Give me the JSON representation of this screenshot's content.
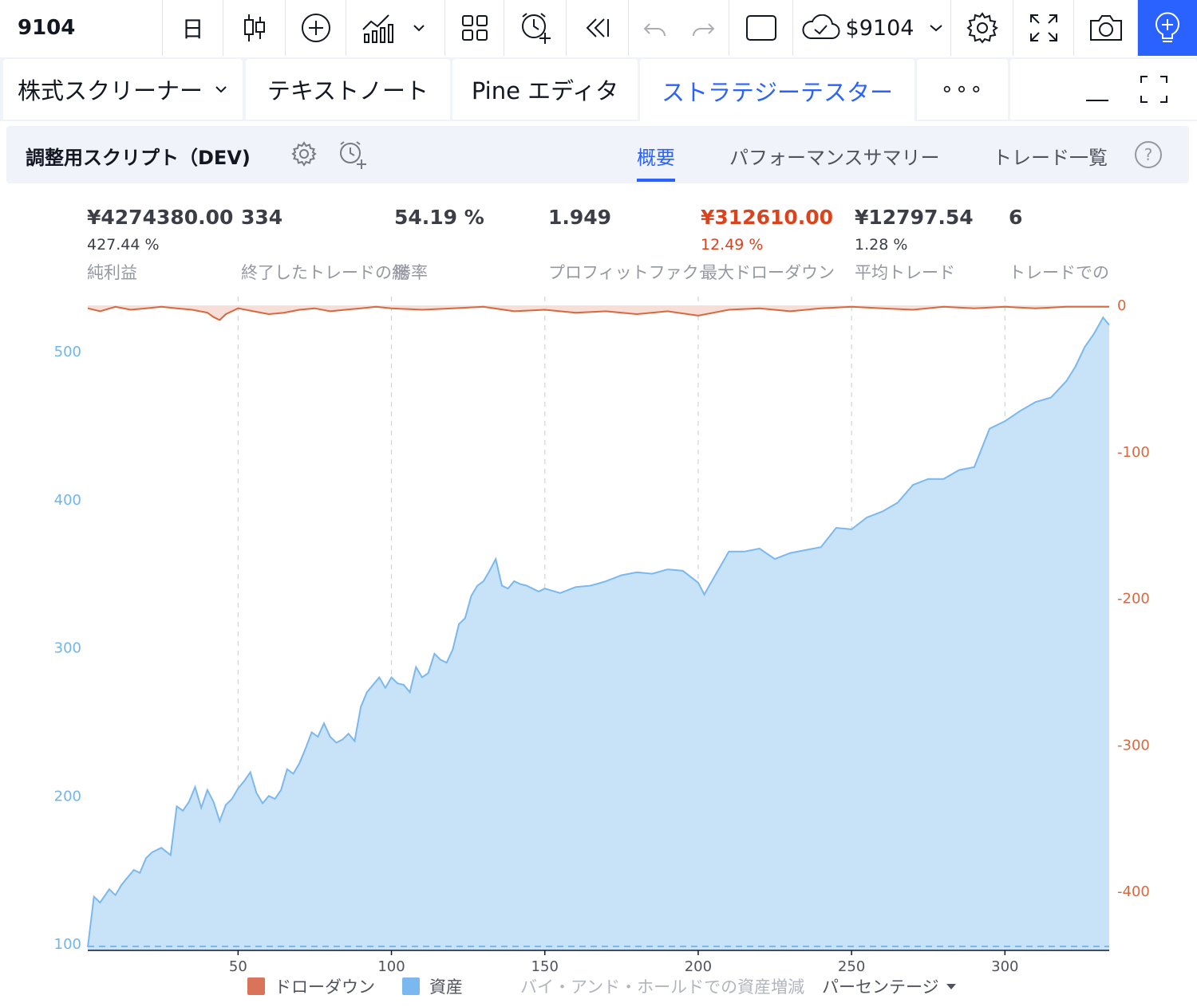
{
  "toolbar": {
    "symbol": "9104",
    "interval": "日",
    "cloud_label": "$9104",
    "icons": [
      "candles-icon",
      "add-circle-icon",
      "indicators-icon",
      "chevron-down-icon",
      "layout-icon",
      "alert-add-icon",
      "replay-icon",
      "undo-icon",
      "redo-icon",
      "square-icon",
      "cloud-check-icon",
      "gear-icon",
      "fullscreen-icon",
      "camera-icon",
      "lightbulb-icon"
    ],
    "accent": "#2962ff"
  },
  "tabs": {
    "screener": "株式スクリーナー",
    "notes": "テキストノート",
    "pine": "Pine エディタ",
    "tester": "ストラテジーテスター",
    "more": "∘∘∘",
    "minimize": "—"
  },
  "strategy": {
    "title": "調整用スクリプト（DEV)",
    "tab_overview": "概要",
    "tab_performance": "パフォーマンスサマリー",
    "tab_trades": "トレード一覧",
    "help": "?"
  },
  "metrics": [
    {
      "value": "¥4274380.00",
      "sub": "427.44 %",
      "label": "純利益",
      "negative": false
    },
    {
      "value": "334",
      "sub": "",
      "label": "終了したトレードの総数",
      "negative": false
    },
    {
      "value": "54.19 %",
      "sub": "",
      "label": "勝率",
      "negative": false
    },
    {
      "value": "1.949",
      "sub": "",
      "label": "プロフィットファクター",
      "negative": false
    },
    {
      "value": "¥312610.00",
      "sub": "12.49 %",
      "label": "最大ドローダウン",
      "negative": true
    },
    {
      "value": "¥12797.54",
      "sub": "1.28 %",
      "label": "平均トレード",
      "negative": false
    },
    {
      "value": "6",
      "sub": "",
      "label": "トレードでの平均足数",
      "negative": false
    }
  ],
  "chart_data": {
    "type": "area",
    "x_range": [
      1,
      334
    ],
    "x_ticks": [
      50,
      100,
      150,
      200,
      250,
      300
    ],
    "left_axis": {
      "ticks": [
        100,
        200,
        300,
        400,
        500
      ],
      "range": [
        100,
        540
      ],
      "color": "#6fb6ef"
    },
    "right_axis": {
      "ticks": [
        0,
        -100,
        -200,
        -300,
        -400
      ],
      "range": [
        -435,
        0
      ],
      "color": "#d9683f"
    },
    "grid_vertical": "dashed",
    "baseline": 100,
    "series": [
      {
        "name": "資産",
        "axis": "left",
        "color": "#7ab8ef",
        "fill": "#c8e3f8",
        "x": [
          1,
          3,
          5,
          8,
          10,
          12,
          14,
          16,
          18,
          20,
          22,
          25,
          28,
          30,
          32,
          34,
          36,
          38,
          40,
          42,
          44,
          46,
          48,
          50,
          52,
          54,
          56,
          58,
          60,
          62,
          64,
          66,
          68,
          70,
          72,
          74,
          76,
          78,
          80,
          82,
          84,
          86,
          88,
          90,
          92,
          94,
          96,
          98,
          100,
          102,
          104,
          106,
          108,
          110,
          112,
          114,
          116,
          118,
          120,
          122,
          124,
          126,
          128,
          130,
          132,
          134,
          136,
          138,
          140,
          142,
          144,
          146,
          148,
          150,
          155,
          160,
          165,
          170,
          175,
          180,
          185,
          190,
          195,
          200,
          202,
          205,
          210,
          215,
          220,
          225,
          230,
          235,
          240,
          245,
          250,
          255,
          260,
          265,
          270,
          275,
          280,
          285,
          290,
          295,
          300,
          305,
          310,
          315,
          320,
          323,
          326,
          329,
          332,
          334
        ],
        "values": [
          98,
          132,
          128,
          137,
          133,
          140,
          145,
          150,
          148,
          158,
          162,
          165,
          160,
          193,
          190,
          196,
          206,
          192,
          204,
          196,
          183,
          194,
          198,
          205,
          210,
          216,
          202,
          195,
          200,
          198,
          204,
          218,
          215,
          222,
          232,
          243,
          240,
          249,
          240,
          236,
          238,
          242,
          237,
          260,
          270,
          275,
          280,
          273,
          280,
          276,
          275,
          270,
          287,
          280,
          283,
          296,
          292,
          290,
          299,
          316,
          320,
          335,
          342,
          345,
          352,
          360,
          342,
          340,
          345,
          343,
          342,
          340,
          338,
          340,
          337,
          341,
          342,
          345,
          349,
          351,
          350,
          353,
          352,
          344,
          336,
          347,
          365,
          365,
          367,
          360,
          364,
          366,
          368,
          381,
          380,
          388,
          392,
          398,
          410,
          414,
          414,
          420,
          422,
          448,
          453,
          460,
          466,
          469,
          480,
          490,
          503,
          512,
          523,
          518
        ]
      },
      {
        "name": "ドローダウン",
        "axis": "right",
        "color": "#d9683f",
        "fill": "#f7ded6",
        "x": [
          1,
          5,
          10,
          15,
          20,
          25,
          30,
          35,
          40,
          42,
          44,
          46,
          48,
          50,
          55,
          60,
          65,
          70,
          75,
          80,
          85,
          90,
          95,
          100,
          110,
          120,
          130,
          140,
          150,
          160,
          170,
          180,
          190,
          200,
          205,
          210,
          220,
          230,
          240,
          250,
          260,
          270,
          280,
          290,
          300,
          310,
          320,
          330,
          334
        ],
        "values": [
          -2,
          -4,
          -1,
          -3,
          -2,
          -1,
          -2,
          -3,
          -5,
          -8,
          -10,
          -6,
          -4,
          -2,
          -4,
          -6,
          -5,
          -3,
          -2,
          -4,
          -3,
          -2,
          -1,
          -2,
          -3,
          -2,
          -1,
          -4,
          -3,
          -5,
          -4,
          -6,
          -4,
          -7,
          -5,
          -3,
          -2,
          -4,
          -2,
          -1,
          -2,
          -3,
          -1,
          -2,
          -1,
          -2,
          -1,
          -1,
          -1
        ]
      }
    ]
  },
  "legend": {
    "drawdown": "ドローダウン",
    "equity": "資産",
    "buy_hold": "バイ・アンド・ホールドでの資産増減",
    "percentage": "パーセンテージ",
    "drawdown_color": "#d9735a",
    "equity_color": "#7ab8ef"
  }
}
